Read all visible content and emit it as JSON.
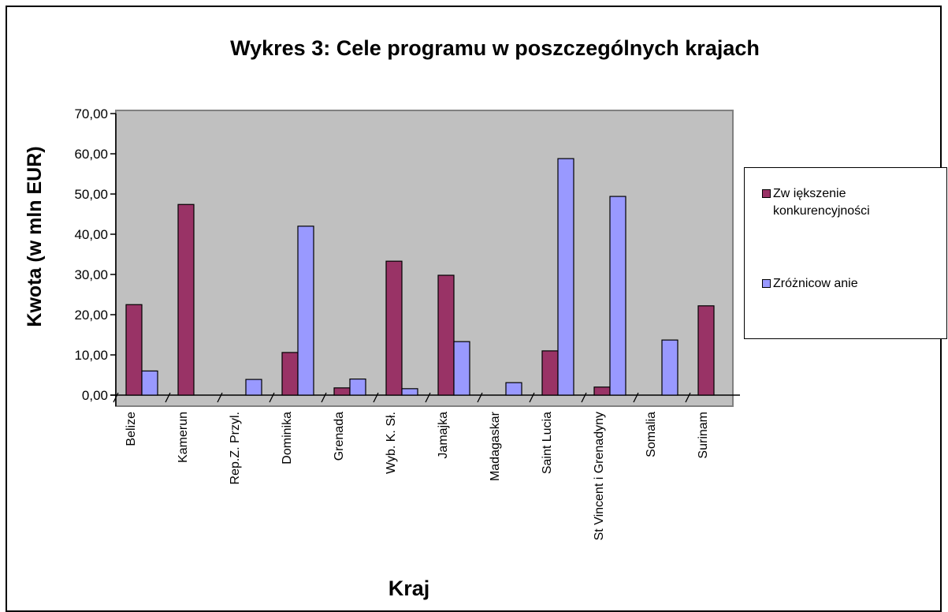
{
  "chart_data": {
    "type": "bar",
    "title": "Wykres 3: Cele programu w poszczególnych krajach",
    "y_label": "Kwota (w mln EUR)",
    "x_label": "Kraj",
    "categories": [
      "Belize",
      "Kamerun",
      "Rep.Z. Przyl.",
      "Dominika",
      "Grenada",
      "Wyb. K. Sł.",
      "Jamajka",
      "Madagaskar",
      "Saint Lucia",
      "St Vincent i Grenadyny",
      "Somalia",
      "Surinam"
    ],
    "series": [
      {
        "name": "Zw iększenie konkurencyjności",
        "color": "#993366",
        "values": [
          22.5,
          47.4,
          0,
          10.6,
          1.8,
          33.3,
          29.8,
          0,
          11,
          2,
          0,
          22.2
        ]
      },
      {
        "name": "Zróżnicow anie",
        "color": "#9999ff",
        "values": [
          6,
          0,
          3.9,
          42,
          4,
          1.6,
          13.3,
          3.1,
          58.8,
          49.4,
          13.7,
          0
        ]
      }
    ],
    "ylim": [
      0,
      70
    ],
    "yticks": [
      {
        "value": 0,
        "label": "0,00"
      },
      {
        "value": 10,
        "label": "10,00"
      },
      {
        "value": 20,
        "label": "20,00"
      },
      {
        "value": 30,
        "label": "30,00"
      },
      {
        "value": 40,
        "label": "40,00"
      },
      {
        "value": 50,
        "label": "50,00"
      },
      {
        "value": 60,
        "label": "60,00"
      },
      {
        "value": 70,
        "label": "70,00"
      }
    ],
    "legend": "right"
  }
}
